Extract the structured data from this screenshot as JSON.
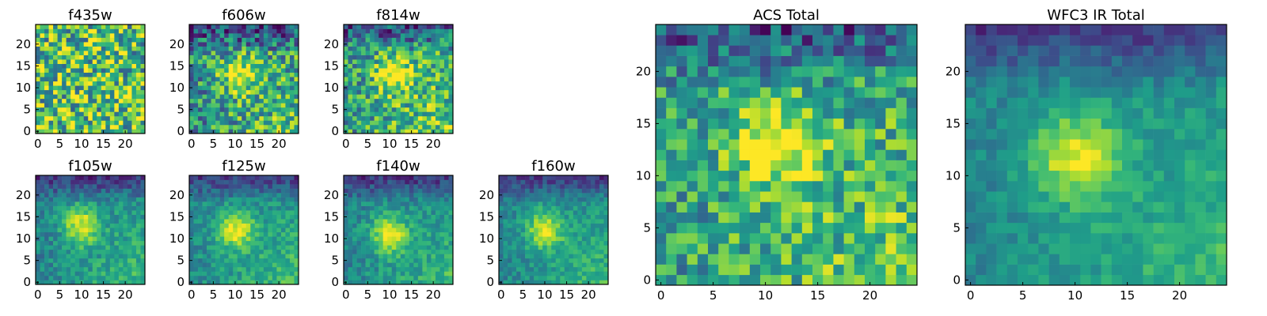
{
  "figure_title": "",
  "chart_data": [
    {
      "type": "heatmap",
      "title": "f435w",
      "grid_size": 25,
      "xlim": [
        0,
        24
      ],
      "ylim": [
        0,
        24
      ],
      "xticks": [
        0,
        5,
        10,
        15,
        20
      ],
      "yticks": [
        0,
        5,
        10,
        15,
        20
      ],
      "colormap": "viridis",
      "source_center": null,
      "noise": 0.42,
      "base": 0.72,
      "seed": 11,
      "grid": false
    },
    {
      "type": "heatmap",
      "title": "f606w",
      "grid_size": 25,
      "xlim": [
        0,
        24
      ],
      "ylim": [
        0,
        24
      ],
      "xticks": [
        0,
        5,
        10,
        15,
        20
      ],
      "yticks": [
        0,
        5,
        10,
        15,
        20
      ],
      "colormap": "viridis",
      "source_center": [
        11,
        13
      ],
      "noise": 0.32,
      "base": 0.5,
      "seed": 23,
      "grid": false
    },
    {
      "type": "heatmap",
      "title": "f814w",
      "grid_size": 25,
      "xlim": [
        0,
        24
      ],
      "ylim": [
        0,
        24
      ],
      "xticks": [
        0,
        5,
        10,
        15,
        20
      ],
      "yticks": [
        0,
        5,
        10,
        15,
        20
      ],
      "colormap": "viridis",
      "source_center": [
        11,
        13
      ],
      "noise": 0.3,
      "base": 0.55,
      "seed": 37,
      "grid": false
    },
    {
      "type": "heatmap",
      "title": "f105w",
      "grid_size": 25,
      "xlim": [
        0,
        24
      ],
      "ylim": [
        0,
        24
      ],
      "xticks": [
        0,
        5,
        10,
        15,
        20
      ],
      "yticks": [
        0,
        5,
        10,
        15,
        20
      ],
      "colormap": "viridis",
      "source_center": [
        10,
        13
      ],
      "noise": 0.14,
      "base": 0.45,
      "seed": 41,
      "grid": false
    },
    {
      "type": "heatmap",
      "title": "f125w",
      "grid_size": 25,
      "xlim": [
        0,
        24
      ],
      "ylim": [
        0,
        24
      ],
      "xticks": [
        0,
        5,
        10,
        15,
        20
      ],
      "yticks": [
        0,
        5,
        10,
        15,
        20
      ],
      "colormap": "viridis",
      "source_center": [
        10,
        12
      ],
      "noise": 0.13,
      "base": 0.47,
      "seed": 53,
      "grid": false
    },
    {
      "type": "heatmap",
      "title": "f140w",
      "grid_size": 25,
      "xlim": [
        0,
        24
      ],
      "ylim": [
        0,
        24
      ],
      "xticks": [
        0,
        5,
        10,
        15,
        20
      ],
      "yticks": [
        0,
        5,
        10,
        15,
        20
      ],
      "colormap": "viridis",
      "source_center": [
        10,
        11
      ],
      "noise": 0.13,
      "base": 0.45,
      "seed": 67,
      "grid": false
    },
    {
      "type": "heatmap",
      "title": "f160w",
      "grid_size": 25,
      "xlim": [
        0,
        24
      ],
      "ylim": [
        0,
        24
      ],
      "xticks": [
        0,
        5,
        10,
        15,
        20
      ],
      "yticks": [
        0,
        5,
        10,
        15,
        20
      ],
      "colormap": "viridis",
      "source_center": [
        10,
        12
      ],
      "noise": 0.12,
      "base": 0.45,
      "seed": 79,
      "grid": false
    },
    {
      "type": "heatmap",
      "title": "ACS Total",
      "grid_size": 25,
      "xlim": [
        0,
        24
      ],
      "ylim": [
        0,
        24
      ],
      "xticks": [
        0,
        5,
        10,
        15,
        20
      ],
      "yticks": [
        0,
        5,
        10,
        15,
        20
      ],
      "colormap": "viridis",
      "source_center": [
        11,
        13
      ],
      "noise": 0.26,
      "base": 0.55,
      "seed": 97,
      "grid": false
    },
    {
      "type": "heatmap",
      "title": "WFC3 IR Total",
      "grid_size": 25,
      "xlim": [
        0,
        24
      ],
      "ylim": [
        0,
        24
      ],
      "xticks": [
        0,
        5,
        10,
        15,
        20
      ],
      "yticks": [
        0,
        5,
        10,
        15,
        20
      ],
      "colormap": "viridis",
      "source_center": [
        10,
        12
      ],
      "noise": 0.1,
      "base": 0.46,
      "seed": 101,
      "grid": false
    }
  ]
}
